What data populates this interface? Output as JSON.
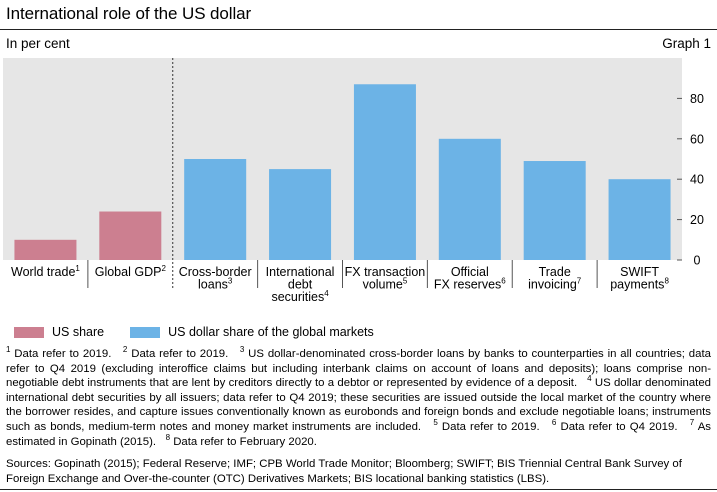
{
  "header": {
    "title": "International role of the US dollar",
    "subtitle": "In per cent",
    "graph_label": "Graph 1"
  },
  "legend": {
    "us_share": "US share",
    "dollar_share": "US dollar share of the global markets"
  },
  "colors": {
    "us_share": "#cc7f90",
    "dollar_share": "#6cb3e6",
    "plot_bg": "#e6e6e6"
  },
  "chart_data": {
    "type": "bar",
    "title": "International role of the US dollar",
    "ylabel": "In per cent",
    "ylim": [
      0,
      100
    ],
    "yticks": [
      0,
      20,
      40,
      60,
      80
    ],
    "grid": false,
    "legend_position": "bottom",
    "categories": [
      {
        "label": [
          "World trade"
        ],
        "sup": "1"
      },
      {
        "label": [
          "Global GDP"
        ],
        "sup": "2"
      },
      {
        "label": [
          "Cross-border",
          "loans"
        ],
        "sup": "3"
      },
      {
        "label": [
          "International",
          "debt",
          "securities"
        ],
        "sup": "4"
      },
      {
        "label": [
          "FX transaction",
          "volume"
        ],
        "sup": "5"
      },
      {
        "label": [
          "Official",
          "FX reserves"
        ],
        "sup": "6"
      },
      {
        "label": [
          "Trade",
          "invoicing"
        ],
        "sup": "7"
      },
      {
        "label": [
          "SWIFT",
          "payments"
        ],
        "sup": "8"
      }
    ],
    "series": [
      {
        "name": "US share",
        "values": [
          10,
          24,
          null,
          null,
          null,
          null,
          null,
          null
        ]
      },
      {
        "name": "US dollar share of the global markets",
        "values": [
          null,
          null,
          50,
          45,
          87,
          60,
          49,
          40
        ]
      }
    ]
  },
  "notes": [
    {
      "sup": "1",
      "text": "Data refer to 2019."
    },
    {
      "sup": "2",
      "text": "Data refer to 2019."
    },
    {
      "sup": "3",
      "text": "US dollar-denominated cross-border loans by banks to counterparties in all countries; data refer to Q4 2019 (excluding interoffice claims but including interbank claims on account of loans and deposits); loans comprise non-negotiable debt instruments that are lent by creditors directly to a debtor or represented by evidence of a deposit."
    },
    {
      "sup": "4",
      "text": "US dollar denominated international debt securities by all issuers; data refer to Q4 2019; these securities are issued outside the local market of the country where the borrower resides, and capture issues conventionally known as eurobonds and foreign bonds and exclude negotiable loans; instruments such as bonds, medium-term notes and money market instruments are included."
    },
    {
      "sup": "5",
      "text": "Data refer to 2019."
    },
    {
      "sup": "6",
      "text": "Data refer to Q4 2019."
    },
    {
      "sup": "7",
      "text": "As estimated in Gopinath (2015)."
    },
    {
      "sup": "8",
      "text": "Data refer to February 2020."
    }
  ],
  "sources": "Sources: Gopinath (2015); Federal Reserve; IMF; CPB World Trade Monitor; Bloomberg; SWIFT; BIS Triennial Central Bank Survey of Foreign Exchange and Over-the-counter (OTC) Derivatives Markets; BIS locational banking statistics (LBS)."
}
